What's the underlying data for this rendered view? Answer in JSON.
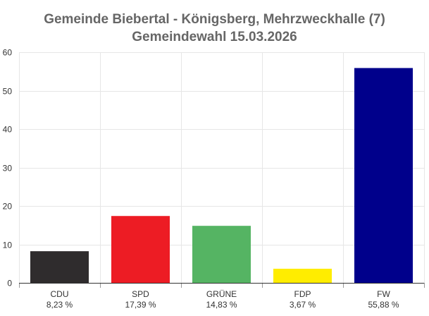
{
  "chart_data": {
    "type": "bar",
    "title": "Gemeinde Biebertal - Königsberg, Mehrzweckhalle (7)",
    "subtitle": "Gemeindewahl 15.03.2026",
    "categories": [
      "CDU",
      "SPD",
      "GRÜNE",
      "FDP",
      "FW"
    ],
    "values": [
      8.23,
      17.39,
      14.83,
      3.67,
      55.88
    ],
    "value_labels": [
      "8,23 %",
      "17,39 %",
      "14,83 %",
      "3,67 %",
      "55,88 %"
    ],
    "colors": [
      "#2f2c2d",
      "#ed1c24",
      "#55b463",
      "#ffed00",
      "#00008b"
    ],
    "yticks": [
      0,
      10,
      20,
      30,
      40,
      50,
      60
    ],
    "ylim": [
      0,
      60
    ],
    "xlabel": "",
    "ylabel": "",
    "grid": true
  }
}
